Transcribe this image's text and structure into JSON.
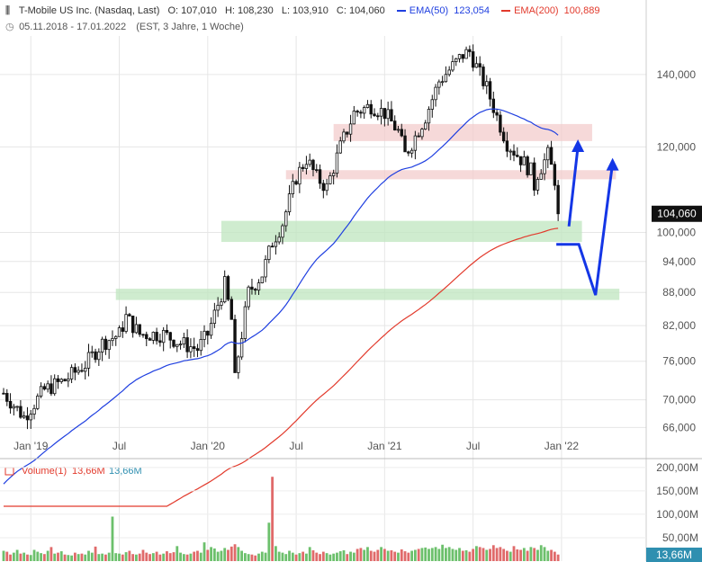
{
  "header": {
    "instrument": "T-Mobile US Inc. (Nasdaq, Last)",
    "open": "O: 107,010",
    "high": "H: 108,230",
    "low": "L: 103,910",
    "close": "C: 104,060",
    "ema50_label": "EMA(50)",
    "ema50_value": "123,054",
    "ema200_label": "EMA(200)",
    "ema200_value": "100,889",
    "date_range": "05.11.2018 - 17.01.2022",
    "timeframe": "(EST, 3 Jahre, 1 Woche)"
  },
  "colors": {
    "ema50": "#1f3fe0",
    "ema200": "#e23a2c",
    "candle_up": "#ffffff",
    "candle_down": "#111111",
    "zone_resistance": "#f2c9c9",
    "zone_support": "#bfe6bf",
    "arrow": "#1436e6",
    "vol_up": "#6cc06c",
    "vol_down": "#e06a6a",
    "label_bg": "#111111",
    "volume_label_bg": "#2f8fb0"
  },
  "price_axis": {
    "scale": "log",
    "range": [
      62,
      152
    ],
    "ticks": [
      "140,000",
      "120,000",
      "100,000",
      "94,000",
      "88,000",
      "82,000",
      "76,000",
      "70,000",
      "66,000"
    ],
    "tick_values": [
      140,
      120,
      100,
      94,
      88,
      82,
      76,
      70,
      66
    ],
    "last_price_label": "104,060",
    "last_price": 104.06
  },
  "time_axis": {
    "labels": [
      "Jan '19",
      "Jul",
      "Jan '20",
      "Jul",
      "Jan '21",
      "Jul",
      "Jan '22"
    ],
    "label_weeks": [
      8,
      34,
      60,
      86,
      112,
      138,
      164
    ]
  },
  "volume_panel": {
    "title": "Volume(1)",
    "value_red": "13,66M",
    "value_blue": "13,66M",
    "ticks": [
      "200,00M",
      "150,00M",
      "100,00M",
      "50,00M"
    ],
    "tick_values": [
      200,
      150,
      100,
      50
    ],
    "last_label": "13,66M",
    "ylim": [
      0,
      215
    ]
  },
  "annotations": {
    "resistance_zones": [
      {
        "from_week": 97,
        "to_week": 173,
        "low": 121.5,
        "high": 126.0
      },
      {
        "from_week": 83,
        "to_week": 180,
        "low": 112.0,
        "high": 114.2
      }
    ],
    "support_zones": [
      {
        "from_week": 64,
        "to_week": 170,
        "low": 98.0,
        "high": 102.5
      },
      {
        "from_week": 33,
        "to_week": 181,
        "low": 86.6,
        "high": 88.7
      }
    ]
  },
  "chart_data": {
    "type": "candlestick",
    "x_unit": "week index from 05.11.2018",
    "keypoints": [
      [
        0,
        71.0
      ],
      [
        6,
        67.5
      ],
      [
        12,
        71.5
      ],
      [
        18,
        73.0
      ],
      [
        24,
        75.5
      ],
      [
        29,
        79.0
      ],
      [
        34,
        80.5
      ],
      [
        36,
        83.5
      ],
      [
        40,
        80.5
      ],
      [
        47,
        80.5
      ],
      [
        52,
        79.0
      ],
      [
        57,
        78.0
      ],
      [
        60,
        80.5
      ],
      [
        62,
        84.0
      ],
      [
        65,
        89.5
      ],
      [
        67,
        83.0
      ],
      [
        68,
        73.0
      ],
      [
        69,
        77.0
      ],
      [
        72,
        88.0
      ],
      [
        76,
        91.5
      ],
      [
        79,
        98.0
      ],
      [
        82,
        102.0
      ],
      [
        86,
        112.5
      ],
      [
        89,
        117.0
      ],
      [
        92,
        112.5
      ],
      [
        95,
        110.0
      ],
      [
        99,
        120.0
      ],
      [
        103,
        129.0
      ],
      [
        108,
        131.0
      ],
      [
        112,
        129.0
      ],
      [
        116,
        124.0
      ],
      [
        118,
        118.0
      ],
      [
        120,
        121.0
      ],
      [
        124,
        128.0
      ],
      [
        128,
        138.0
      ],
      [
        132,
        142.5
      ],
      [
        135,
        146.0
      ],
      [
        137,
        147.0
      ],
      [
        140,
        140.0
      ],
      [
        142,
        136.0
      ],
      [
        145,
        128.0
      ],
      [
        148,
        121.0
      ],
      [
        152,
        117.0
      ],
      [
        155,
        114.0
      ],
      [
        156,
        110.5
      ],
      [
        157,
        113.5
      ],
      [
        160,
        118.0
      ],
      [
        162,
        112.0
      ],
      [
        163,
        107.0
      ],
      [
        164,
        104.06
      ]
    ],
    "ema50": {
      "name": "EMA(50)",
      "last": 123.054
    },
    "ema200": {
      "name": "EMA(200)",
      "last": 100.889
    },
    "volume": {
      "units": "M",
      "values": [
        22,
        20,
        14,
        18,
        24,
        16,
        18,
        14,
        13,
        24,
        20,
        17,
        15,
        22,
        30,
        16,
        18,
        21,
        14,
        13,
        12,
        18,
        15,
        16,
        14,
        22,
        18,
        31,
        15,
        16,
        14,
        18,
        95,
        17,
        16,
        14,
        19,
        22,
        15,
        14,
        16,
        24,
        18,
        15,
        17,
        20,
        14,
        16,
        21,
        17,
        19,
        32,
        18,
        15,
        14,
        16,
        20,
        22,
        18,
        40,
        24,
        30,
        27,
        20,
        22,
        28,
        24,
        31,
        36,
        30,
        22,
        17,
        15,
        14,
        12,
        16,
        20,
        18,
        82,
        180,
        32,
        20,
        18,
        15,
        22,
        18,
        14,
        17,
        20,
        16,
        30,
        23,
        18,
        15,
        20,
        17,
        14,
        16,
        18,
        21,
        23,
        15,
        20,
        18,
        26,
        28,
        24,
        30,
        22,
        20,
        24,
        30,
        26,
        22,
        23,
        20,
        18,
        25,
        21,
        18,
        22,
        24,
        26,
        28,
        29,
        26,
        28,
        30,
        26,
        35,
        28,
        30,
        26,
        24,
        28,
        22,
        23,
        20,
        26,
        32,
        30,
        28,
        24,
        26,
        34,
        28,
        30,
        26,
        22,
        20,
        32,
        25,
        24,
        28,
        22,
        30,
        28,
        24,
        34,
        30,
        22,
        24,
        20,
        14
      ]
    },
    "last_price": 104.06,
    "projected_path": {
      "target_high_low": [
        115,
        121
      ],
      "support_touch": 97.5,
      "support_lower": 87.5
    }
  }
}
